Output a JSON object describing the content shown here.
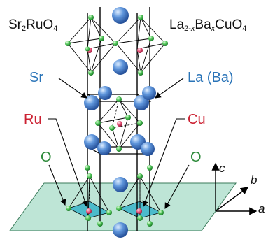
{
  "formulas": {
    "left": {
      "a": "Sr",
      "b": "2",
      "c": "RuO",
      "d": "4"
    },
    "right": {
      "a": "La",
      "b": "2-",
      "c": "x",
      "d": "Ba",
      "e": "x",
      "f": "CuO",
      "g": "4"
    }
  },
  "labels": {
    "sr": "Sr",
    "la_ba": "La (Ba)",
    "ru": "Ru",
    "cu": "Cu",
    "o_left": "O",
    "o_right": "O"
  },
  "axes": {
    "a": "a",
    "b": "b",
    "c": "c"
  },
  "colors": {
    "sr_la_atom": "#3a78c8",
    "ru_cu_atom": "#e05070",
    "oxygen_atom": "#3cb24a",
    "plane": "#a8dcc8",
    "sr_label": "#2a74b8",
    "ru_label": "#cc2233",
    "o_label": "#2d8a3a"
  }
}
